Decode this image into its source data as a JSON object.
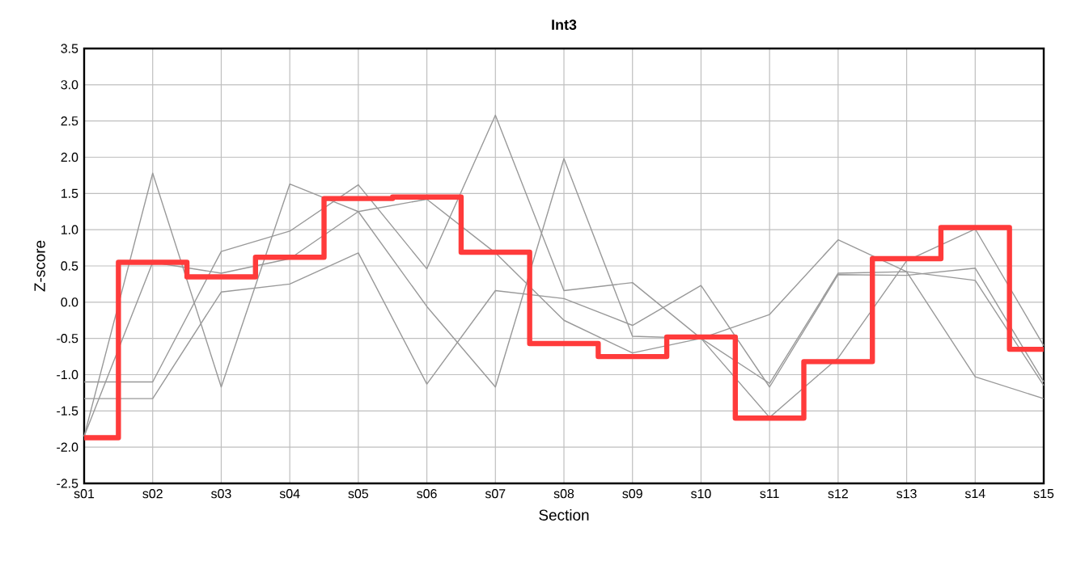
{
  "chart_data": {
    "type": "line",
    "title": "Int3",
    "xlabel": "Section",
    "ylabel": "Z-score",
    "categories": [
      "s01",
      "s02",
      "s03",
      "s04",
      "s05",
      "s06",
      "s07",
      "s08",
      "s09",
      "s10",
      "s11",
      "s12",
      "s13",
      "s14",
      "s15"
    ],
    "series": [
      {
        "color": "#999999",
        "values": [
          -1.85,
          1.78,
          -1.17,
          1.63,
          1.25,
          1.42,
          0.68,
          -0.25,
          -0.7,
          -0.5,
          -1.59,
          -0.77,
          0.57,
          1.01,
          -0.6
        ]
      },
      {
        "color": "#999999",
        "values": [
          -1.85,
          0.55,
          0.4,
          0.6,
          1.25,
          -0.06,
          -1.17,
          1.98,
          -0.47,
          -0.5,
          -1.12,
          0.4,
          0.42,
          0.3,
          -1.15
        ]
      },
      {
        "color": "#999999",
        "values": [
          -1.1,
          -1.1,
          0.7,
          0.98,
          1.62,
          0.46,
          2.58,
          0.16,
          0.27,
          -0.5,
          -0.17,
          0.86,
          0.42,
          -1.03,
          -1.33
        ]
      },
      {
        "color": "#999999",
        "values": [
          -1.33,
          -1.33,
          0.14,
          0.25,
          0.68,
          -1.13,
          0.16,
          0.05,
          -0.32,
          0.23,
          -1.17,
          0.38,
          0.37,
          0.47,
          -1.1
        ]
      },
      {
        "type": "step",
        "color": "#ff3b3b",
        "values": [
          -1.87,
          0.55,
          0.35,
          0.62,
          1.43,
          1.45,
          0.69,
          -0.57,
          -0.75,
          -0.48,
          -1.6,
          -0.82,
          0.6,
          1.03,
          -0.65
        ]
      }
    ],
    "ylim": [
      -2.5,
      3.5
    ],
    "yticks": [
      -2.5,
      {
        "value": -2,
        "label": "-2.0"
      },
      -1.5,
      {
        "value": -1,
        "label": "-1.0"
      },
      -0.5,
      {
        "value": 0,
        "label": "0.0"
      },
      0.5,
      {
        "value": 1,
        "label": "1.0"
      },
      1.5,
      {
        "value": 2,
        "label": "2.0"
      },
      2.5,
      {
        "value": 3,
        "label": "3.0"
      },
      3.5
    ],
    "grid": true,
    "marker": "none"
  }
}
